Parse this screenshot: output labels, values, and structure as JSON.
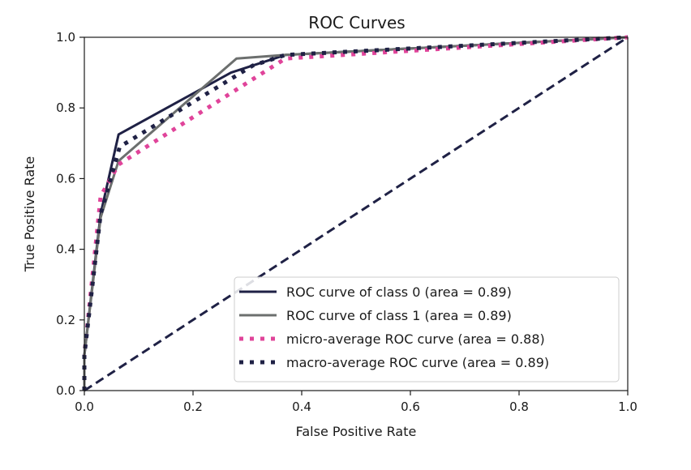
{
  "chart_data": {
    "type": "line",
    "title": "ROC Curves",
    "xlabel": "False Positive Rate",
    "ylabel": "True Positive Rate",
    "xlim": [
      0.0,
      1.0
    ],
    "ylim": [
      0.0,
      1.0
    ],
    "xticks": [
      0.0,
      0.2,
      0.4,
      0.6,
      0.8,
      1.0
    ],
    "yticks": [
      0.0,
      0.2,
      0.4,
      0.6,
      0.8,
      1.0
    ],
    "xtick_labels": [
      "0.0",
      "0.2",
      "0.4",
      "0.6",
      "0.8",
      "1.0"
    ],
    "ytick_labels": [
      "0.0",
      "0.2",
      "0.4",
      "0.6",
      "0.8",
      "1.0"
    ],
    "grid": false,
    "legend_position": "lower-right",
    "series": [
      {
        "name": "ROC curve of class 0 (area = 0.89)",
        "style": "solid",
        "color": "#1f2145",
        "x": [
          0.0,
          0.0,
          0.03,
          0.063,
          0.27,
          0.37,
          1.0
        ],
        "y": [
          0.0,
          0.1,
          0.5,
          0.725,
          0.9,
          0.95,
          1.0
        ]
      },
      {
        "name": "ROC curve of class 1 (area = 0.89)",
        "style": "solid",
        "color": "#6c6f6e",
        "x": [
          0.0,
          0.0,
          0.03,
          0.063,
          0.28,
          0.37,
          1.0
        ],
        "y": [
          0.0,
          0.1,
          0.49,
          0.65,
          0.94,
          0.95,
          1.0
        ]
      },
      {
        "name": "micro-average ROC curve (area = 0.88)",
        "style": "dotted",
        "color": "#e0449a",
        "x": [
          0.0,
          0.0,
          0.03,
          0.063,
          0.37,
          1.0
        ],
        "y": [
          0.0,
          0.1,
          0.55,
          0.64,
          0.94,
          1.0
        ]
      },
      {
        "name": "macro-average ROC curve (area = 0.89)",
        "style": "dotted",
        "color": "#1f2145",
        "x": [
          0.0,
          0.0,
          0.03,
          0.065,
          0.31,
          0.37,
          1.0
        ],
        "y": [
          0.0,
          0.1,
          0.5,
          0.69,
          0.92,
          0.95,
          1.0
        ]
      }
    ],
    "diagonal": {
      "name": "chance",
      "style": "dashed",
      "color": "#1f2145",
      "x": [
        0.0,
        1.0
      ],
      "y": [
        0.0,
        1.0
      ]
    }
  }
}
